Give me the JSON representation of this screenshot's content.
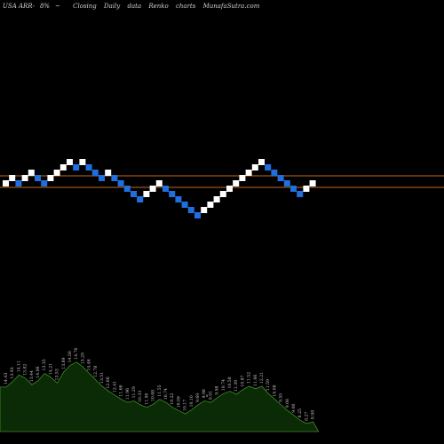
{
  "header": {
    "symbol": "USA ARR-",
    "pct": "8%",
    "sign": "~",
    "closing": "Closing",
    "daily": "Daily",
    "data": "data",
    "renko": "Renko",
    "charts": "charts",
    "brand": "MunafaSutra.com"
  },
  "colors": {
    "background": "#000000",
    "up_brick": "#ffffff",
    "down_brick": "#1f6fdf",
    "level_line": "#c46a1a",
    "volume_fill": "#0b2b06",
    "volume_edge": "#3f8a2a",
    "label": "#c8c8c8"
  },
  "chart_data": {
    "type": "renko",
    "bricks": {
      "levels": [
        4,
        5,
        4,
        5,
        6,
        5,
        4,
        5,
        6,
        7,
        8,
        7,
        8,
        7,
        6,
        5,
        6,
        5,
        4,
        3,
        2,
        1,
        2,
        3,
        4,
        3,
        2,
        1,
        0,
        -1,
        -2,
        -1,
        0,
        1,
        2,
        3,
        4,
        5,
        6,
        7,
        8,
        7,
        6,
        5,
        4,
        3,
        2,
        3,
        4
      ],
      "directions": [
        "up",
        "up",
        "down",
        "up",
        "up",
        "down",
        "down",
        "up",
        "up",
        "up",
        "up",
        "down",
        "up",
        "down",
        "down",
        "down",
        "up",
        "down",
        "down",
        "down",
        "down",
        "down",
        "up",
        "up",
        "up",
        "down",
        "down",
        "down",
        "down",
        "down",
        "down",
        "up",
        "up",
        "up",
        "up",
        "up",
        "up",
        "up",
        "up",
        "up",
        "up",
        "down",
        "down",
        "down",
        "down",
        "down",
        "down",
        "up",
        "up"
      ]
    },
    "reference_levels": [
      "upper",
      "lower"
    ],
    "volume": {
      "values": [
        0.55,
        0.62,
        0.7,
        0.66,
        0.58,
        0.63,
        0.72,
        0.67,
        0.6,
        0.74,
        0.82,
        0.86,
        0.8,
        0.72,
        0.64,
        0.56,
        0.5,
        0.45,
        0.4,
        0.36,
        0.38,
        0.33,
        0.3,
        0.34,
        0.4,
        0.36,
        0.3,
        0.26,
        0.22,
        0.27,
        0.33,
        0.38,
        0.36,
        0.42,
        0.47,
        0.5,
        0.46,
        0.52,
        0.56,
        0.53,
        0.56,
        0.47,
        0.4,
        0.33,
        0.26,
        0.2,
        0.14,
        0.1,
        0.12
      ],
      "labels": [
        "14.43",
        "13.93",
        "14.11",
        "13.82",
        "13.44",
        "14.06",
        "13.35",
        "14.21",
        "13.53",
        "13.89",
        "14.56",
        "14.70",
        "15.29",
        "14.46",
        "12.78",
        "13.51",
        "12.66",
        "12.41",
        "11.66",
        "11.96",
        "11.29",
        "10.33",
        "11.90",
        "10.68",
        "11.55",
        "10.74",
        "10.22",
        "10.09",
        "10.17",
        "10.10",
        "9.69",
        "9.98",
        "9.91",
        "9.98",
        "10.74",
        "10.58",
        "11.39",
        "10.87",
        "11.52",
        "11.66",
        "12.21",
        "11.59",
        "10.08",
        "9.55",
        "9.08",
        "9.00",
        "8.25",
        "8.27",
        "8.98"
      ],
      "marker": "s"
    }
  }
}
